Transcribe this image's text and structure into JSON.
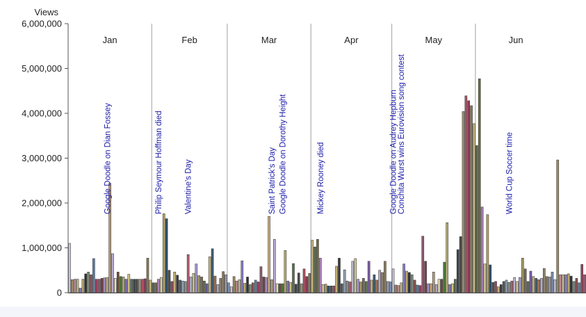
{
  "chart_data": {
    "type": "bar",
    "ylabel": "Views",
    "ylim": [
      0,
      6000000
    ],
    "yticks": [
      0,
      1000000,
      2000000,
      3000000,
      4000000,
      5000000,
      6000000
    ],
    "ytick_labels": [
      "0",
      "1,000,000",
      "2,000,000",
      "3,000,000",
      "4,000,000",
      "5,000,000",
      "6,000,000"
    ],
    "grid": false,
    "months": [
      {
        "label": "Jan",
        "start_day": 1,
        "end_day": 31
      },
      {
        "label": "Feb",
        "start_day": 32,
        "end_day": 59
      },
      {
        "label": "Mar",
        "start_day": 60,
        "end_day": 90
      },
      {
        "label": "Apr",
        "start_day": 91,
        "end_day": 120
      },
      {
        "label": "May",
        "start_day": 121,
        "end_day": 151
      },
      {
        "label": "Jun",
        "start_day": 152,
        "end_day": 181
      }
    ],
    "values": [
      1100000,
      290000,
      300000,
      300000,
      100000,
      300000,
      420000,
      460000,
      400000,
      760000,
      300000,
      300000,
      320000,
      330000,
      340000,
      2440000,
      870000,
      320000,
      460000,
      360000,
      350000,
      300000,
      410000,
      300000,
      300000,
      300000,
      300000,
      300000,
      310000,
      770000,
      280000,
      220000,
      220000,
      300000,
      340000,
      1760000,
      1650000,
      500000,
      250000,
      460000,
      390000,
      280000,
      260000,
      250000,
      850000,
      350000,
      430000,
      640000,
      380000,
      350000,
      260000,
      200000,
      800000,
      980000,
      370000,
      180000,
      320000,
      470000,
      400000,
      220000,
      130000,
      360000,
      260000,
      290000,
      710000,
      210000,
      350000,
      180000,
      220000,
      280000,
      240000,
      580000,
      350000,
      340000,
      1700000,
      290000,
      1190000,
      200000,
      200000,
      200000,
      940000,
      260000,
      230000,
      650000,
      190000,
      440000,
      200000,
      530000,
      360000,
      430000,
      1170000,
      1020000,
      1190000,
      770000,
      180000,
      190000,
      150000,
      150000,
      150000,
      590000,
      770000,
      200000,
      510000,
      260000,
      240000,
      700000,
      760000,
      300000,
      240000,
      320000,
      250000,
      700000,
      280000,
      400000,
      280000,
      500000,
      450000,
      700000,
      250000,
      240000,
      530000,
      170000,
      160000,
      220000,
      640000,
      480000,
      450000,
      400000,
      280000,
      170000,
      160000,
      1260000,
      700000,
      200000,
      200000,
      460000,
      180000,
      300000,
      300000,
      680000,
      1560000,
      180000,
      200000,
      300000,
      960000,
      1250000,
      4040000,
      4390000,
      4280000,
      4170000,
      3770000,
      3280000,
      4770000,
      1910000,
      640000,
      1740000,
      620000,
      230000,
      250000,
      130000,
      180000,
      250000,
      280000,
      230000,
      260000,
      340000,
      250000,
      340000,
      770000,
      530000,
      250000,
      480000,
      360000,
      320000,
      290000,
      320000,
      540000,
      360000,
      350000,
      460000,
      290000,
      2960000,
      400000,
      400000,
      400000,
      420000,
      370000,
      250000,
      320000,
      220000,
      630000,
      400000
    ],
    "annotations": [
      {
        "text": "Google Doodle on Dian Fossey",
        "day": 15
      },
      {
        "text": "Philip Seymour Hoffman died",
        "day": 34
      },
      {
        "text": "Valentine's Day",
        "day": 45
      },
      {
        "text": "Saint Patrick's Day",
        "day": 76
      },
      {
        "text": "Google Doodle on Dorothy Height",
        "day": 80
      },
      {
        "text": "Mickey Rooney died",
        "day": 94
      },
      {
        "text": "Google Doodle on Audrey Hepburn",
        "day": 121
      },
      {
        "text": "Conchita Wurst wins Eurovision song contest",
        "day": 124
      },
      {
        "text": "World Cup Soccer time",
        "day": 164
      }
    ],
    "palette": [
      "#7a5aa8",
      "#d8cfa0",
      "#e6e0b8",
      "#c8c4d8",
      "#8f8f8f",
      "#a09070",
      "#5d7ea6",
      "#c9b47a",
      "#b8a060",
      "#6b4b3a",
      "#9a8a60",
      "#b35b73",
      "#b05060",
      "#9e3f5a",
      "#3d5d73",
      "#2b4f6e",
      "#4b7a3a",
      "#c08a9a",
      "#b8b8d0",
      "#8b3a5a",
      "#8c5a70",
      "#a07050",
      "#4e4e4e",
      "#b5ab6f",
      "#c2b886",
      "#d0c890",
      "#8a7a50",
      "#7f3b49",
      "#b8a8c8",
      "#9a4458",
      "#7f6fc0",
      "#8a7bd0",
      "#a898d8",
      "#c8b880",
      "#a090c0",
      "#8a8070",
      "#c0b078",
      "#d0c080",
      "#b8a868",
      "#a09860",
      "#5a6850",
      "#c9a97a",
      "#8a7a5a",
      "#3a3a3a",
      "#5a7050",
      "#2f3030",
      "#7a6a50",
      "#6f6a40",
      "#b89878",
      "#9a9aa8",
      "#505a60",
      "#3a4048",
      "#7a8a7a",
      "#5a7050",
      "#aa80b8",
      "#b8a8d0",
      "#7a8fb0",
      "#8fa0b0",
      "#4a4a4a",
      "#8a5050"
    ],
    "annotation_color": "#1a1aa8"
  }
}
